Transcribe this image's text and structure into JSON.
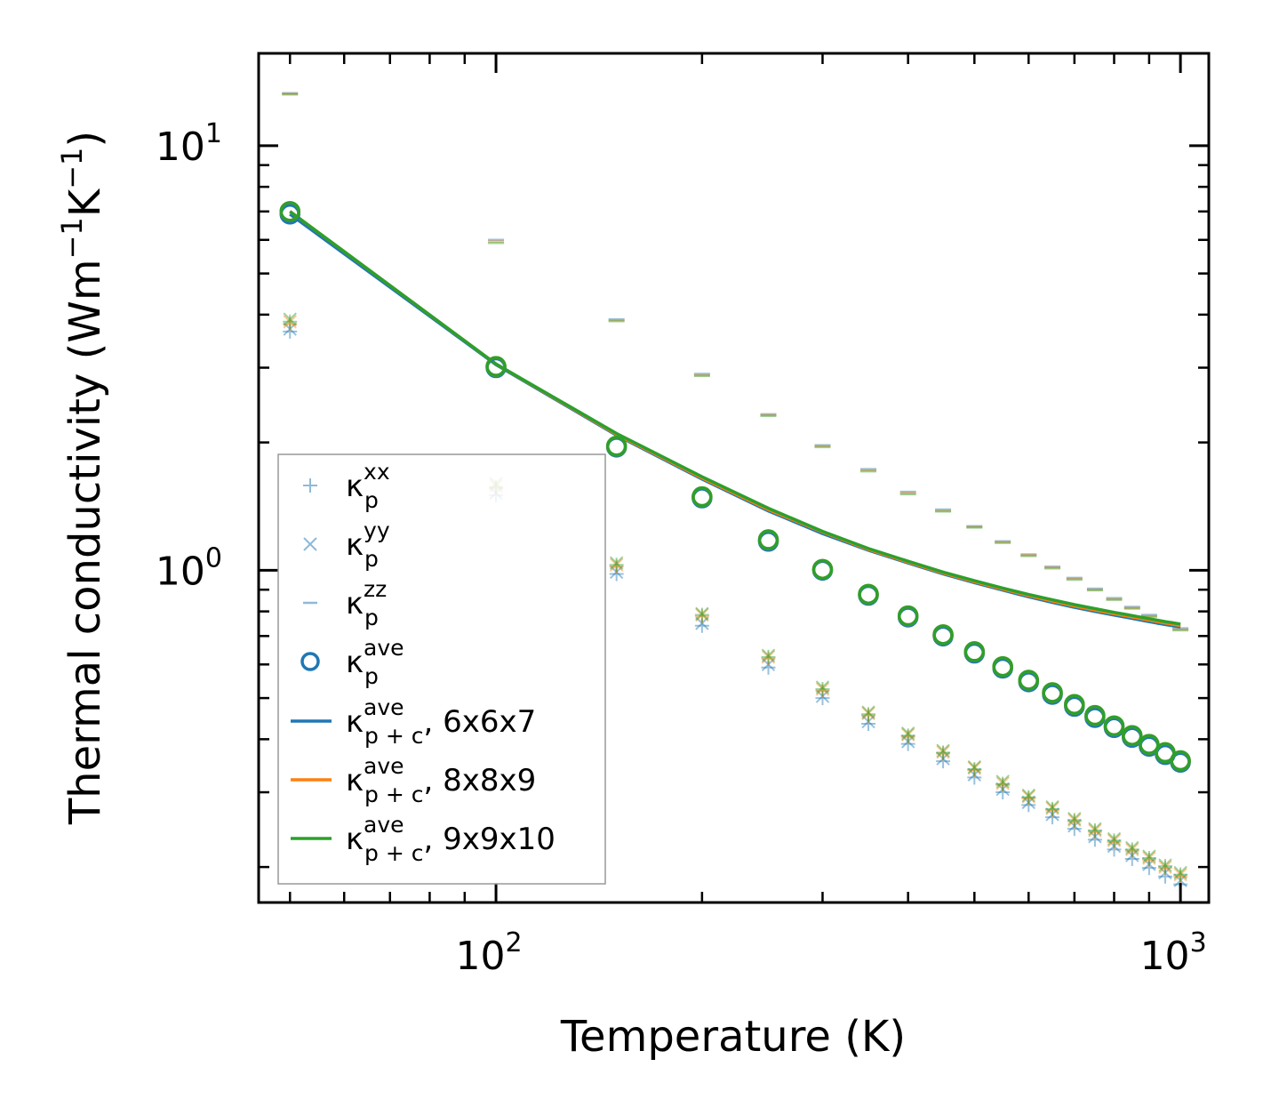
{
  "chart_data": {
    "type": "scatter",
    "x_scale": "log",
    "y_scale": "log",
    "xlabel": "Temperature (K)",
    "ylabel_main": "Thermal conductivity (Wm",
    "ylabel_sup1": "−1",
    "ylabel_mid": "K",
    "ylabel_sup2": "−1",
    "ylabel_end": ")",
    "xlim": [
      45,
      1100
    ],
    "ylim": [
      0.165,
      16.5
    ],
    "x_ticks": [
      {
        "value": 100,
        "base": "10",
        "exp": "2"
      },
      {
        "value": 1000,
        "base": "10",
        "exp": "3"
      }
    ],
    "y_ticks": [
      {
        "value": 1,
        "base": "10",
        "exp": "0"
      },
      {
        "value": 10,
        "base": "10",
        "exp": "1"
      }
    ],
    "temperatures": [
      50,
      100,
      150,
      200,
      250,
      300,
      350,
      400,
      450,
      500,
      550,
      600,
      650,
      700,
      750,
      800,
      850,
      900,
      950,
      1000
    ],
    "legend_position": "lower-left",
    "legend": [
      {
        "kind": "plus",
        "sym": "κ",
        "sub": "p",
        "sup": "xx",
        "suffix": ""
      },
      {
        "kind": "x",
        "sym": "κ",
        "sub": "p",
        "sup": "yy",
        "suffix": ""
      },
      {
        "kind": "dash",
        "sym": "κ",
        "sub": "p",
        "sup": "zz",
        "suffix": ""
      },
      {
        "kind": "circle",
        "sym": "κ",
        "sub": "p",
        "sup": "ave",
        "suffix": ""
      },
      {
        "kind": "line",
        "color": "#1f77b4",
        "sym": "κ",
        "sub": "p + c",
        "sup": "ave",
        "suffix": ", 6x6x7"
      },
      {
        "kind": "line",
        "color": "#ff7f0e",
        "sym": "κ",
        "sub": "p + c",
        "sup": "ave",
        "suffix": ", 8x8x9"
      },
      {
        "kind": "line",
        "color": "#2ca02c",
        "sym": "κ",
        "sub": "p + c",
        "sup": "ave",
        "suffix": ", 9x9x10"
      }
    ],
    "series": [
      {
        "name": "6x6x7",
        "color": "#1f77b4",
        "kappa_p_xx": [
          3.65,
          1.5,
          0.98,
          0.74,
          0.59,
          0.5,
          0.435,
          0.39,
          0.355,
          0.325,
          0.3,
          0.28,
          0.262,
          0.246,
          0.232,
          0.22,
          0.209,
          0.199,
          0.19,
          0.182
        ],
        "kappa_p_yy": [
          3.7,
          1.52,
          0.99,
          0.75,
          0.6,
          0.505,
          0.44,
          0.395,
          0.36,
          0.33,
          0.305,
          0.284,
          0.266,
          0.25,
          0.236,
          0.224,
          0.213,
          0.203,
          0.194,
          0.186
        ],
        "kappa_p_zz": [
          13.3,
          6.0,
          3.9,
          2.9,
          2.33,
          1.97,
          1.73,
          1.53,
          1.39,
          1.27,
          1.17,
          1.09,
          1.02,
          0.96,
          0.905,
          0.86,
          0.82,
          0.785,
          0.755,
          0.73
        ],
        "kappa_p_ave": [
          6.9,
          3.0,
          1.95,
          1.48,
          1.17,
          1.0,
          0.873,
          0.776,
          0.7,
          0.638,
          0.588,
          0.546,
          0.51,
          0.478,
          0.45,
          0.426,
          0.404,
          0.385,
          0.368,
          0.353
        ],
        "kappa_pc_ave": [
          6.9,
          3.05,
          2.08,
          1.64,
          1.38,
          1.22,
          1.115,
          1.04,
          0.98,
          0.935,
          0.898,
          0.866,
          0.84,
          0.818,
          0.8,
          0.784,
          0.77,
          0.757,
          0.745,
          0.735
        ]
      },
      {
        "name": "8x8x9",
        "color": "#ff7f0e",
        "kappa_p_xx": [
          3.8,
          1.56,
          1.02,
          0.78,
          0.62,
          0.52,
          0.455,
          0.405,
          0.37,
          0.338,
          0.312,
          0.29,
          0.272,
          0.256,
          0.242,
          0.229,
          0.218,
          0.208,
          0.199,
          0.19
        ],
        "kappa_p_yy": [
          3.85,
          1.58,
          1.03,
          0.785,
          0.625,
          0.525,
          0.46,
          0.41,
          0.373,
          0.342,
          0.315,
          0.293,
          0.275,
          0.258,
          0.244,
          0.231,
          0.22,
          0.21,
          0.2,
          0.192
        ],
        "kappa_p_zz": [
          13.25,
          5.95,
          3.88,
          2.88,
          2.32,
          1.96,
          1.72,
          1.52,
          1.38,
          1.265,
          1.165,
          1.085,
          1.015,
          0.955,
          0.9,
          0.855,
          0.815,
          0.78,
          0.75,
          0.725
        ],
        "kappa_p_ave": [
          7.0,
          3.02,
          1.96,
          1.49,
          1.18,
          1.005,
          0.878,
          0.781,
          0.705,
          0.643,
          0.593,
          0.551,
          0.515,
          0.483,
          0.455,
          0.43,
          0.408,
          0.389,
          0.372,
          0.356
        ],
        "kappa_pc_ave": [
          7.0,
          3.06,
          2.09,
          1.65,
          1.39,
          1.23,
          1.12,
          1.045,
          0.985,
          0.94,
          0.903,
          0.872,
          0.846,
          0.824,
          0.806,
          0.79,
          0.776,
          0.763,
          0.751,
          0.741
        ]
      },
      {
        "name": "9x9x10",
        "color": "#2ca02c",
        "kappa_p_xx": [
          3.85,
          1.57,
          1.03,
          0.785,
          0.625,
          0.525,
          0.458,
          0.408,
          0.372,
          0.34,
          0.314,
          0.292,
          0.274,
          0.258,
          0.244,
          0.231,
          0.22,
          0.21,
          0.201,
          0.192
        ],
        "kappa_p_yy": [
          3.9,
          1.6,
          1.04,
          0.79,
          0.63,
          0.53,
          0.463,
          0.413,
          0.376,
          0.344,
          0.318,
          0.295,
          0.277,
          0.26,
          0.246,
          0.233,
          0.222,
          0.212,
          0.202,
          0.194
        ],
        "kappa_p_zz": [
          13.2,
          5.9,
          3.86,
          2.87,
          2.31,
          1.95,
          1.71,
          1.51,
          1.375,
          1.26,
          1.16,
          1.08,
          1.01,
          0.95,
          0.897,
          0.852,
          0.812,
          0.777,
          0.747,
          0.722
        ],
        "kappa_p_ave": [
          7.0,
          3.02,
          1.96,
          1.49,
          1.18,
          1.005,
          0.878,
          0.781,
          0.705,
          0.643,
          0.593,
          0.551,
          0.515,
          0.483,
          0.455,
          0.43,
          0.408,
          0.389,
          0.372,
          0.356
        ],
        "kappa_pc_ave": [
          7.0,
          3.06,
          2.1,
          1.66,
          1.4,
          1.235,
          1.125,
          1.05,
          0.99,
          0.945,
          0.908,
          0.877,
          0.852,
          0.83,
          0.812,
          0.796,
          0.782,
          0.769,
          0.757,
          0.747
        ]
      }
    ]
  }
}
